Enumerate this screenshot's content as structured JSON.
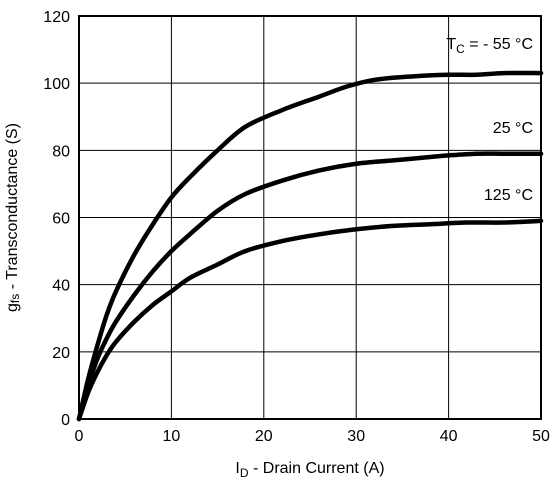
{
  "chart_data": {
    "type": "line",
    "xlabel": {
      "prefix": "I",
      "sub": "D",
      "suffix": " - Drain Current (A)"
    },
    "ylabel": {
      "prefix": "g",
      "sub": "fs",
      "suffix": " - Transconductance (S)"
    },
    "xlim": [
      0,
      50
    ],
    "ylim": [
      0,
      120
    ],
    "x_ticks": [
      0,
      10,
      20,
      30,
      40,
      50
    ],
    "y_ticks": [
      0,
      20,
      40,
      60,
      80,
      100,
      120
    ],
    "grid": true,
    "series": [
      {
        "label": {
          "prefix": "T",
          "sub": "C",
          "suffix": " = - 55 °C"
        },
        "x": [
          0,
          1,
          2,
          3,
          4,
          6,
          8,
          10,
          12,
          15,
          18,
          22,
          26,
          29,
          32,
          36,
          40,
          43,
          46,
          50
        ],
        "y": [
          0,
          12,
          22,
          31,
          38,
          49,
          58,
          66,
          72,
          80,
          87,
          92,
          96,
          99,
          101,
          102,
          102.5,
          102.5,
          103,
          103
        ]
      },
      {
        "label": {
          "prefix": "",
          "sub": "",
          "suffix": "25 °C"
        },
        "x": [
          0,
          1,
          2,
          3,
          4,
          6,
          8,
          10,
          12,
          15,
          18,
          22,
          26,
          30,
          34,
          38,
          40,
          43,
          46,
          50
        ],
        "y": [
          0,
          10,
          18,
          24,
          29,
          37,
          44,
          50,
          55,
          62,
          67,
          71,
          74,
          76,
          77,
          78,
          78.5,
          79,
          79,
          79
        ]
      },
      {
        "label": {
          "prefix": "",
          "sub": "",
          "suffix": "125 °C"
        },
        "x": [
          0,
          1,
          2,
          3,
          4,
          6,
          8,
          10,
          12,
          15,
          18,
          22,
          26,
          30,
          34,
          38,
          42,
          46,
          50
        ],
        "y": [
          0,
          8,
          14,
          19,
          23,
          29,
          34,
          38,
          42,
          46,
          50,
          53,
          55,
          56.5,
          57.5,
          58,
          58.5,
          58.5,
          59
        ]
      }
    ]
  }
}
